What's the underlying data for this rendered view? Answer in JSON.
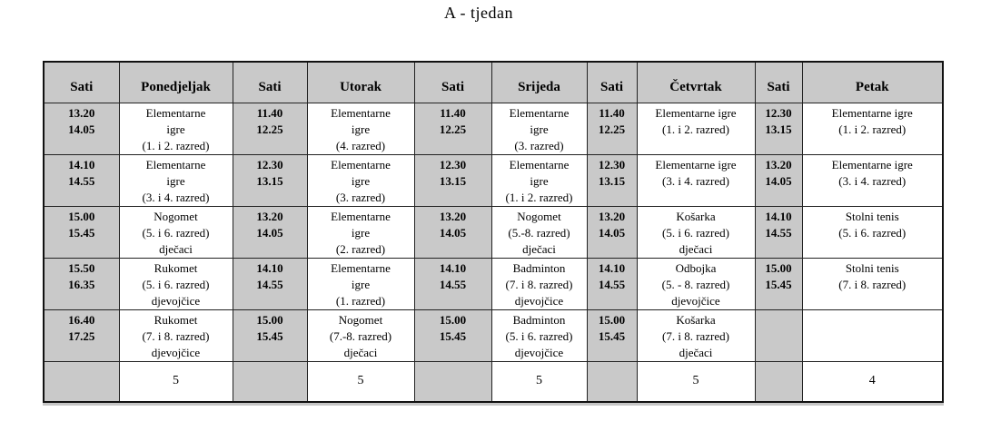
{
  "title": "A - tjedan",
  "timetable": {
    "time_header": "Sati",
    "days": [
      {
        "name": "Ponedjeljak",
        "total": "5",
        "slots": [
          {
            "start": "13.20",
            "end": "14.05",
            "lines": [
              "Elementarne",
              "igre",
              "(1. i 2. razred)"
            ]
          },
          {
            "start": "14.10",
            "end": "14.55",
            "lines": [
              "Elementarne",
              "igre",
              "(3. i 4. razred)"
            ]
          },
          {
            "start": "15.00",
            "end": "15.45",
            "lines": [
              "Nogomet",
              "(5. i 6. razred)",
              "dječaci"
            ]
          },
          {
            "start": "15.50",
            "end": "16.35",
            "lines": [
              "Rukomet",
              "(5. i 6. razred)",
              "djevojčice"
            ]
          },
          {
            "start": "16.40",
            "end": "17.25",
            "lines": [
              "Rukomet",
              "(7. i 8. razred)",
              "djevojčice"
            ]
          }
        ]
      },
      {
        "name": "Utorak",
        "total": "5",
        "slots": [
          {
            "start": "11.40",
            "end": "12.25",
            "lines": [
              "Elementarne",
              "igre",
              "(4. razred)"
            ]
          },
          {
            "start": "12.30",
            "end": "13.15",
            "lines": [
              "Elementarne",
              "igre",
              "(3. razred)"
            ]
          },
          {
            "start": "13.20",
            "end": "14.05",
            "lines": [
              "Elementarne",
              "igre",
              "(2. razred)"
            ]
          },
          {
            "start": "14.10",
            "end": "14.55",
            "lines": [
              "Elementarne",
              "igre",
              "(1. razred)"
            ]
          },
          {
            "start": "15.00",
            "end": "15.45",
            "lines": [
              "Nogomet",
              "(7.-8. razred)",
              "dječaci"
            ]
          }
        ]
      },
      {
        "name": "Srijeda",
        "total": "5",
        "slots": [
          {
            "start": "11.40",
            "end": "12.25",
            "lines": [
              "Elementarne",
              "igre",
              "(3. razred)"
            ]
          },
          {
            "start": "12.30",
            "end": "13.15",
            "lines": [
              "Elementarne",
              "igre",
              "(1. i 2. razred)"
            ]
          },
          {
            "start": "13.20",
            "end": "14.05",
            "lines": [
              "Nogomet",
              "(5.-8. razred)",
              "dječaci"
            ]
          },
          {
            "start": "14.10",
            "end": "14.55",
            "lines": [
              "Badminton",
              "(7. i 8. razred)",
              "djevojčice"
            ]
          },
          {
            "start": "15.00",
            "end": "15.45",
            "lines": [
              "Badminton",
              "(5. i 6. razred)",
              "djevojčice"
            ]
          }
        ]
      },
      {
        "name": "Četvrtak",
        "total": "5",
        "slots": [
          {
            "start": "11.40",
            "end": "12.25",
            "lines": [
              "Elementarne igre",
              "(1. i 2. razred)"
            ]
          },
          {
            "start": "12.30",
            "end": "13.15",
            "lines": [
              "Elementarne igre",
              "(3. i 4. razred)"
            ]
          },
          {
            "start": "13.20",
            "end": "14.05",
            "lines": [
              "Košarka",
              "(5. i 6. razred)",
              "dječaci"
            ]
          },
          {
            "start": "14.10",
            "end": "14.55",
            "lines": [
              "Odbojka",
              "(5. - 8. razred)",
              "djevojčice"
            ]
          },
          {
            "start": "15.00",
            "end": "15.45",
            "lines": [
              "Košarka",
              "(7. i 8. razred)",
              "dječaci"
            ]
          }
        ]
      },
      {
        "name": "Petak",
        "total": "4",
        "slots": [
          {
            "start": "12.30",
            "end": "13.15",
            "lines": [
              "Elementarne igre",
              "(1. i 2. razred)"
            ]
          },
          {
            "start": "13.20",
            "end": "14.05",
            "lines": [
              "Elementarne igre",
              "(3. i 4. razred)"
            ]
          },
          {
            "start": "14.10",
            "end": "14.55",
            "lines": [
              "Stolni tenis",
              "(5. i 6. razred)"
            ]
          },
          {
            "start": "15.00",
            "end": "15.45",
            "lines": [
              "Stolni tenis",
              "(7. i 8. razred)"
            ]
          },
          {
            "start": "",
            "end": "",
            "lines": []
          }
        ]
      }
    ]
  },
  "colors": {
    "header_fill": "#c9c9c9",
    "time_fill": "#c9c9c9",
    "border": "#111111"
  }
}
